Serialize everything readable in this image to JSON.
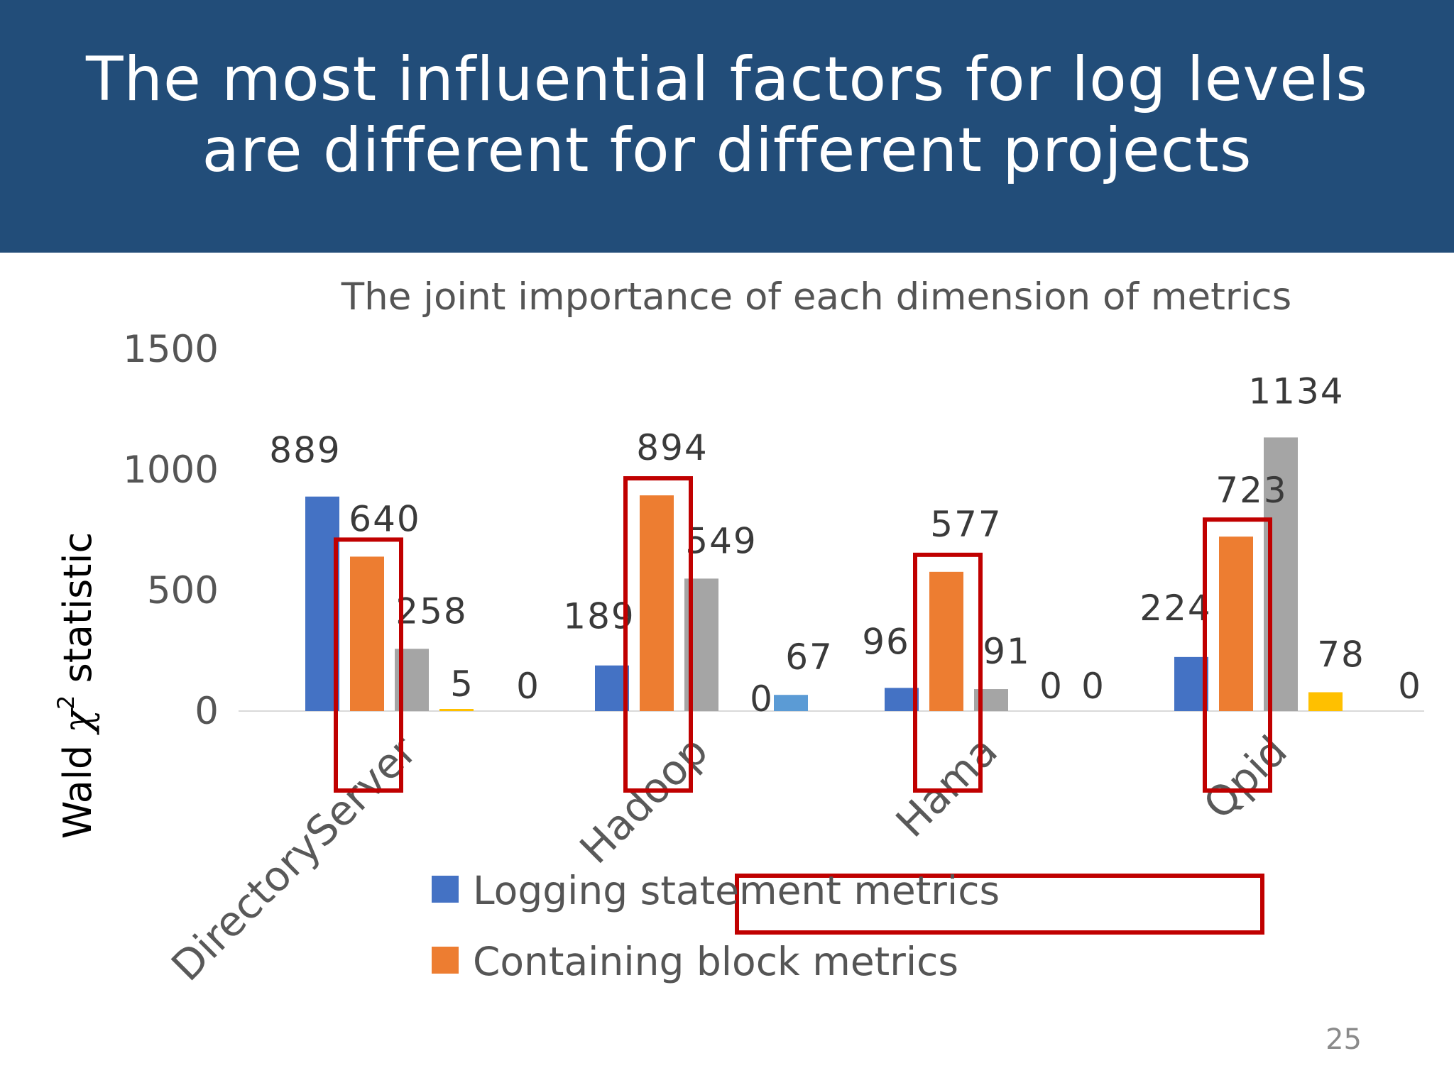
{
  "slide": {
    "title_line1": "The most influential factors for log levels",
    "title_line2": "are different for different projects",
    "page_number": "25"
  },
  "chart_data": {
    "type": "bar",
    "title": "The joint importance of each dimension of metrics",
    "ylabel_prefix": "Wald ",
    "ylabel_symbol": "χ",
    "ylabel_superscript": "2",
    "ylabel_suffix": " statistic",
    "xlabel": "",
    "ylim": [
      0,
      1500
    ],
    "yticks": [
      "0",
      "500",
      "1000",
      "1500"
    ],
    "grid": false,
    "legend_position": "bottom",
    "categories": [
      "DirectoryServer",
      "Hadoop",
      "Hama",
      "Qpid"
    ],
    "series": [
      {
        "name": "Logging statement metrics",
        "color": "#4472c4",
        "values": [
          889,
          189,
          96,
          224
        ]
      },
      {
        "name": "Containing block metrics",
        "color": "#ed7d31",
        "values": [
          640,
          894,
          577,
          723
        ]
      },
      {
        "name": "",
        "color": "#a5a5a5",
        "values": [
          258,
          549,
          91,
          1134
        ]
      },
      {
        "name": "",
        "color": "#ffc000",
        "values": [
          5,
          0,
          0,
          78
        ]
      },
      {
        "name": "",
        "color": "#5b9bd5",
        "values": [
          0,
          67,
          0,
          0
        ]
      }
    ],
    "data_labels": [
      [
        "889",
        "189",
        "96",
        "224"
      ],
      [
        "640",
        "894",
        "577",
        "723"
      ],
      [
        "258",
        "549",
        "91",
        "1134"
      ],
      [
        "5",
        "0",
        "0",
        "78"
      ],
      [
        "0",
        "67",
        "0",
        "0"
      ]
    ],
    "highlight_boxes": [
      "Containing block metrics"
    ],
    "highlight_color": "#c00000"
  }
}
